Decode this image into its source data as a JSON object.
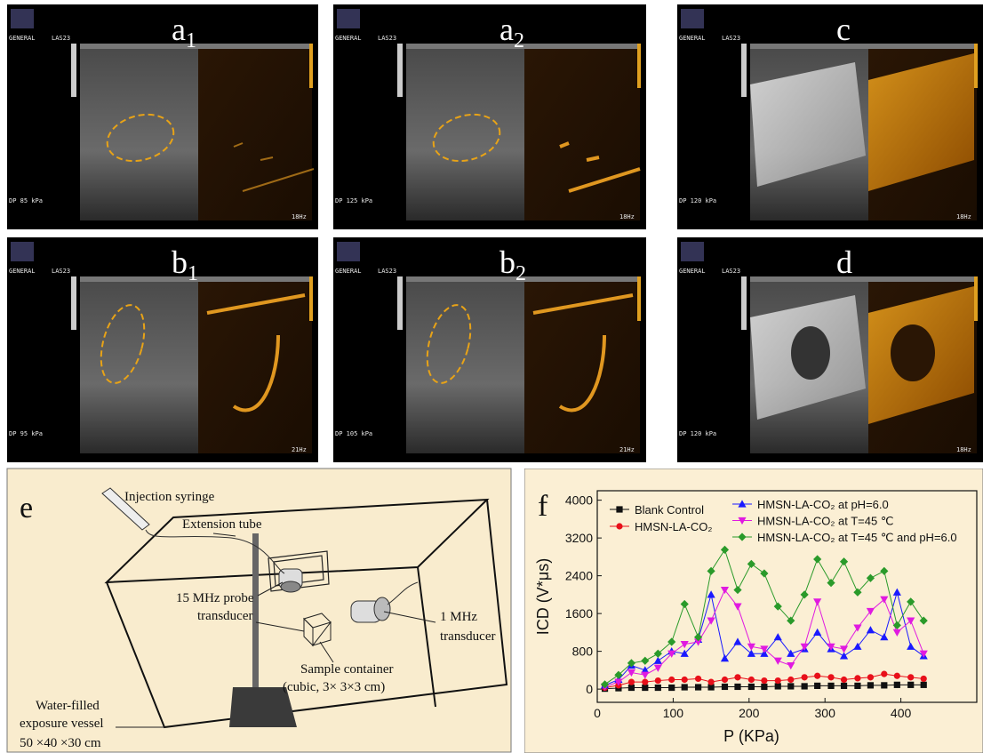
{
  "panels": [
    {
      "label": "a",
      "sub": "1",
      "mode": "GENERAL",
      "probe": "LAS23",
      "pressure": "DP  85 kPa",
      "rate": "18Hz"
    },
    {
      "label": "a",
      "sub": "2",
      "mode": "GENERAL",
      "probe": "LAS23",
      "pressure": "DP 125 kPa",
      "rate": "18Hz"
    },
    {
      "label": "c",
      "mode": "GENERAL",
      "probe": "LAS23",
      "pressure": "DP 120 kPa",
      "rate": "18Hz"
    },
    {
      "label": "b",
      "sub": "1",
      "mode": "GENERAL",
      "probe": "LAS23",
      "pressure": "DP  95 kPa",
      "rate": "21Hz"
    },
    {
      "label": "b",
      "sub": "2",
      "mode": "GENERAL",
      "probe": "LAS23",
      "pressure": "DP 105 kPa",
      "rate": "21Hz"
    },
    {
      "label": "d",
      "mode": "GENERAL",
      "probe": "LAS23",
      "pressure": "DP 120 kPa",
      "rate": "18Hz"
    }
  ],
  "diagram": {
    "label": "e",
    "syringe": "Injection syringe",
    "tube": "Extension tube",
    "probe_line1": "15 MHz probe",
    "probe_line2": "transducer",
    "transducer_line1": "1 MHz",
    "transducer_line2": "transducer",
    "sample_line1": "Sample container",
    "sample_line2": "(cubic, 3× 3×3 cm)",
    "vessel_line1": "Water-filled",
    "vessel_line2": "exposure vessel",
    "vessel_line3": "50 ×40 ×30 cm"
  },
  "chart_data": {
    "type": "line",
    "panel_label": "f",
    "x_label": "P (KPa)",
    "y_label": "ICD (V*μs)",
    "xlim": [
      0,
      500
    ],
    "ylim": [
      -280,
      4200
    ],
    "xticks": [
      0,
      100,
      200,
      300,
      400
    ],
    "yticks": [
      0,
      800,
      1600,
      2400,
      3200,
      4000
    ],
    "x": [
      10,
      28,
      45,
      63,
      80,
      98,
      115,
      133,
      150,
      168,
      185,
      203,
      220,
      238,
      255,
      273,
      290,
      308,
      325,
      343,
      360,
      378,
      395,
      413,
      430
    ],
    "series": [
      {
        "name": "Blank Control",
        "color": "#111111",
        "marker": "square",
        "values": [
          10,
          20,
          30,
          30,
          30,
          30,
          40,
          40,
          40,
          50,
          50,
          50,
          50,
          60,
          60,
          60,
          70,
          70,
          70,
          70,
          80,
          80,
          90,
          90,
          90
        ]
      },
      {
        "name": "HMSN-LA-CO₂",
        "color": "#e8101a",
        "marker": "circle",
        "values": [
          30,
          80,
          150,
          150,
          180,
          200,
          200,
          220,
          150,
          200,
          250,
          200,
          180,
          180,
          200,
          250,
          280,
          250,
          200,
          230,
          250,
          320,
          280,
          250,
          220
        ]
      },
      {
        "name": "HMSN-LA-CO₂ at pH=6.0",
        "color": "#1a1aff",
        "marker": "triangle-up",
        "values": [
          80,
          200,
          500,
          400,
          600,
          800,
          750,
          1050,
          2000,
          650,
          1000,
          750,
          750,
          1100,
          750,
          850,
          1200,
          850,
          700,
          900,
          1250,
          1100,
          2050,
          900,
          700
        ]
      },
      {
        "name": "HMSN-LA-CO₂ at T=45 ℃",
        "color": "#e01ae0",
        "marker": "triangle-down",
        "values": [
          50,
          150,
          350,
          300,
          450,
          750,
          950,
          1000,
          1450,
          2100,
          1750,
          900,
          850,
          600,
          500,
          900,
          1850,
          900,
          850,
          1300,
          1650,
          1900,
          1200,
          1450,
          750
        ]
      },
      {
        "name": "HMSN-LA-CO₂ at T=45 ℃ and pH=6.0",
        "color": "#2a9a2a",
        "marker": "diamond",
        "values": [
          100,
          300,
          550,
          600,
          750,
          1000,
          1800,
          1100,
          2500,
          2950,
          2100,
          2650,
          2450,
          1750,
          1450,
          2000,
          2750,
          2250,
          2700,
          2050,
          2350,
          2500,
          1350,
          1850,
          1450
        ]
      }
    ]
  }
}
